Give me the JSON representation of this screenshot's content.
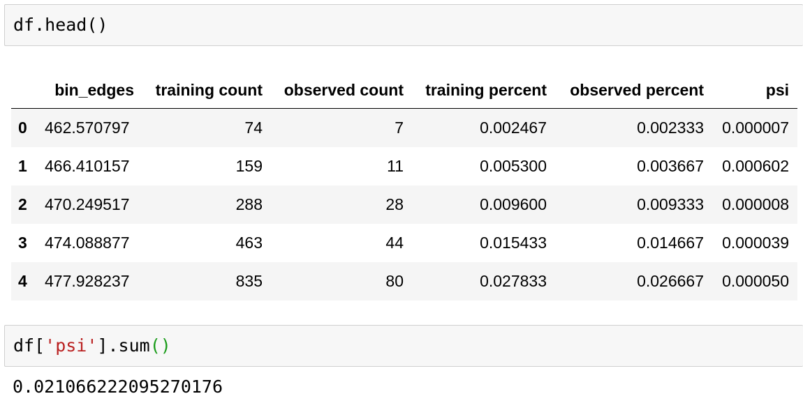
{
  "cell1": {
    "code": "df.head()"
  },
  "table": {
    "columns": [
      "",
      "bin_edges",
      "training count",
      "observed count",
      "training percent",
      "observed percent",
      "psi"
    ],
    "rows": [
      {
        "index": "0",
        "bin_edges": "462.570797",
        "training_count": "74",
        "observed_count": "7",
        "training_percent": "0.002467",
        "observed_percent": "0.002333",
        "psi": "0.000007"
      },
      {
        "index": "1",
        "bin_edges": "466.410157",
        "training_count": "159",
        "observed_count": "11",
        "training_percent": "0.005300",
        "observed_percent": "0.003667",
        "psi": "0.000602"
      },
      {
        "index": "2",
        "bin_edges": "470.249517",
        "training_count": "288",
        "observed_count": "28",
        "training_percent": "0.009600",
        "observed_percent": "0.009333",
        "psi": "0.000008"
      },
      {
        "index": "3",
        "bin_edges": "474.088877",
        "training_count": "463",
        "observed_count": "44",
        "training_percent": "0.015433",
        "observed_percent": "0.014667",
        "psi": "0.000039"
      },
      {
        "index": "4",
        "bin_edges": "477.928237",
        "training_count": "835",
        "observed_count": "80",
        "training_percent": "0.027833",
        "observed_percent": "0.026667",
        "psi": "0.000050"
      }
    ]
  },
  "cell2": {
    "code_prefix": "df[",
    "code_string": "'psi'",
    "code_mid": "].sum",
    "code_parens": "()"
  },
  "output2": {
    "text": "0.021066222095270176"
  },
  "colors": {
    "string_token": "#ba2121",
    "paren_token": "#1a9c1a",
    "cell_background": "#f7f7f7",
    "row_stripe": "#f5f5f5"
  }
}
